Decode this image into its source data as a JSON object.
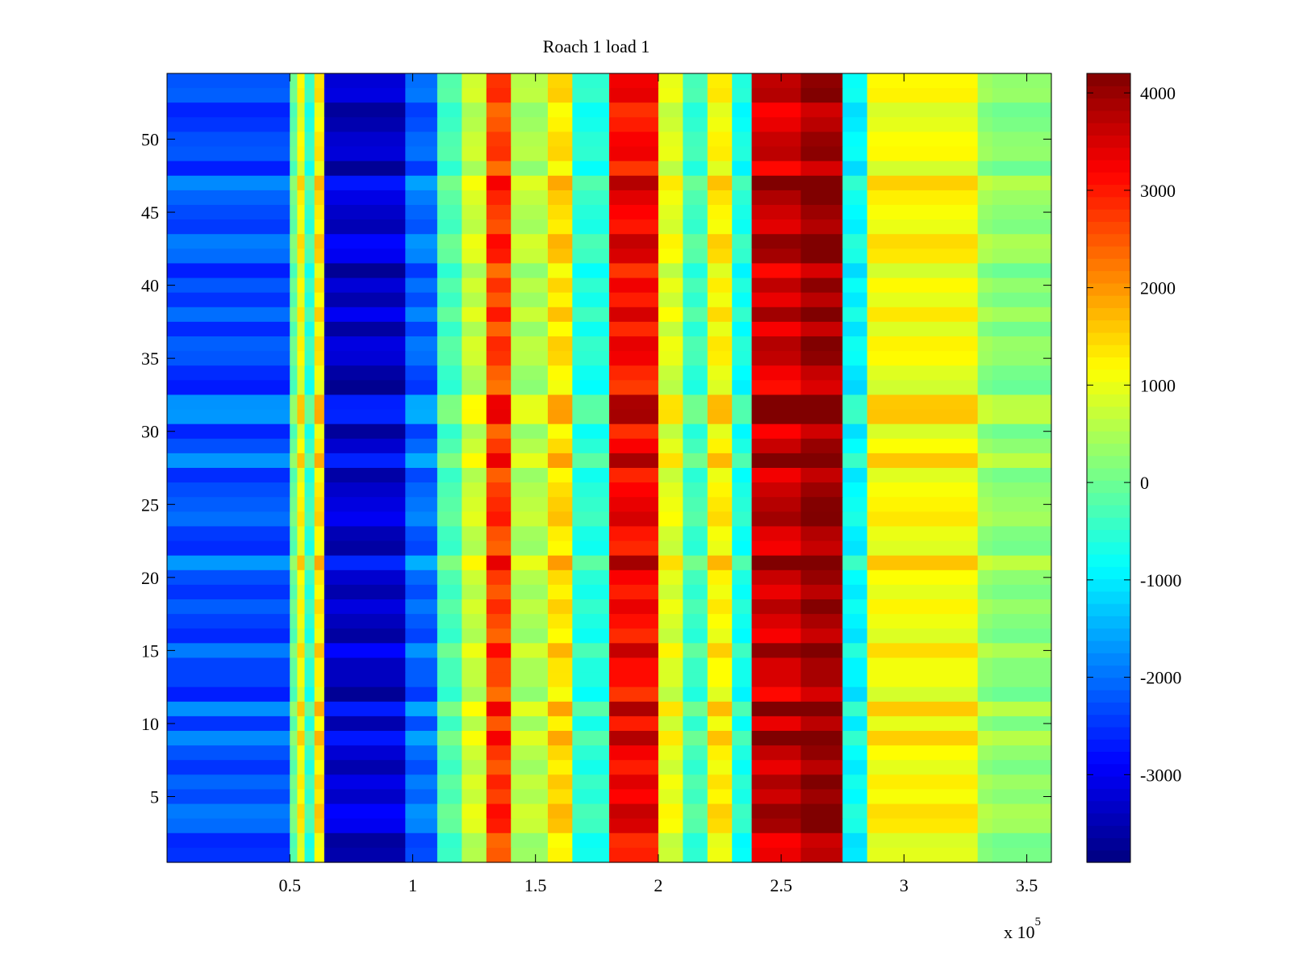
{
  "chart_data": {
    "type": "heatmap",
    "title": "Roach 1 load 1",
    "xlabel": "",
    "ylabel": "",
    "x_exponent_label": "x 10",
    "x_exponent_power": "5",
    "xlim": [
      0,
      3.6
    ],
    "ylim": [
      0.5,
      54.5
    ],
    "x_ticks": [
      0.5,
      1,
      1.5,
      2,
      2.5,
      3,
      3.5
    ],
    "x_tick_labels": [
      "0.5",
      "1",
      "1.5",
      "2",
      "2.5",
      "3",
      "3.5"
    ],
    "y_ticks": [
      5,
      10,
      15,
      20,
      25,
      30,
      35,
      40,
      45,
      50
    ],
    "y_tick_labels": [
      "5",
      "10",
      "15",
      "20",
      "25",
      "30",
      "35",
      "40",
      "45",
      "50"
    ],
    "colorbar": {
      "colormap": "jet",
      "clim": [
        -3900,
        4200
      ],
      "ticks": [
        -3000,
        -2000,
        -1000,
        0,
        1000,
        2000,
        3000,
        4000
      ],
      "tick_labels": [
        "-3000",
        "-2000",
        "-1000",
        "0",
        "1000",
        "2000",
        "3000",
        "4000"
      ]
    },
    "rows": 54,
    "column_bands": [
      {
        "x_start": 0.0,
        "x_end": 0.5,
        "value": -2200
      },
      {
        "x_start": 0.5,
        "x_end": 0.53,
        "value": 0
      },
      {
        "x_start": 0.53,
        "x_end": 0.56,
        "value": 1200
      },
      {
        "x_start": 0.56,
        "x_end": 0.6,
        "value": -400
      },
      {
        "x_start": 0.6,
        "x_end": 0.64,
        "value": 1400
      },
      {
        "x_start": 0.64,
        "x_end": 0.97,
        "value": -3200
      },
      {
        "x_start": 0.97,
        "x_end": 1.1,
        "value": -2000
      },
      {
        "x_start": 1.1,
        "x_end": 1.2,
        "value": -200
      },
      {
        "x_start": 1.2,
        "x_end": 1.3,
        "value": 800
      },
      {
        "x_start": 1.3,
        "x_end": 1.4,
        "value": 2800
      },
      {
        "x_start": 1.4,
        "x_end": 1.55,
        "value": 600
      },
      {
        "x_start": 1.55,
        "x_end": 1.65,
        "value": 1500
      },
      {
        "x_start": 1.65,
        "x_end": 1.8,
        "value": -500
      },
      {
        "x_start": 1.8,
        "x_end": 2.0,
        "value": 3300
      },
      {
        "x_start": 2.0,
        "x_end": 2.1,
        "value": 1000
      },
      {
        "x_start": 2.1,
        "x_end": 2.2,
        "value": -300
      },
      {
        "x_start": 2.2,
        "x_end": 2.3,
        "value": 1300
      },
      {
        "x_start": 2.3,
        "x_end": 2.38,
        "value": -600
      },
      {
        "x_start": 2.38,
        "x_end": 2.58,
        "value": 3700
      },
      {
        "x_start": 2.58,
        "x_end": 2.75,
        "value": 4100
      },
      {
        "x_start": 2.75,
        "x_end": 2.85,
        "value": -800
      },
      {
        "x_start": 2.85,
        "x_end": 3.3,
        "value": 1200
      },
      {
        "x_start": 3.3,
        "x_end": 3.36,
        "value": 400
      },
      {
        "x_start": 3.36,
        "x_end": 3.6,
        "value": 300
      }
    ]
  }
}
